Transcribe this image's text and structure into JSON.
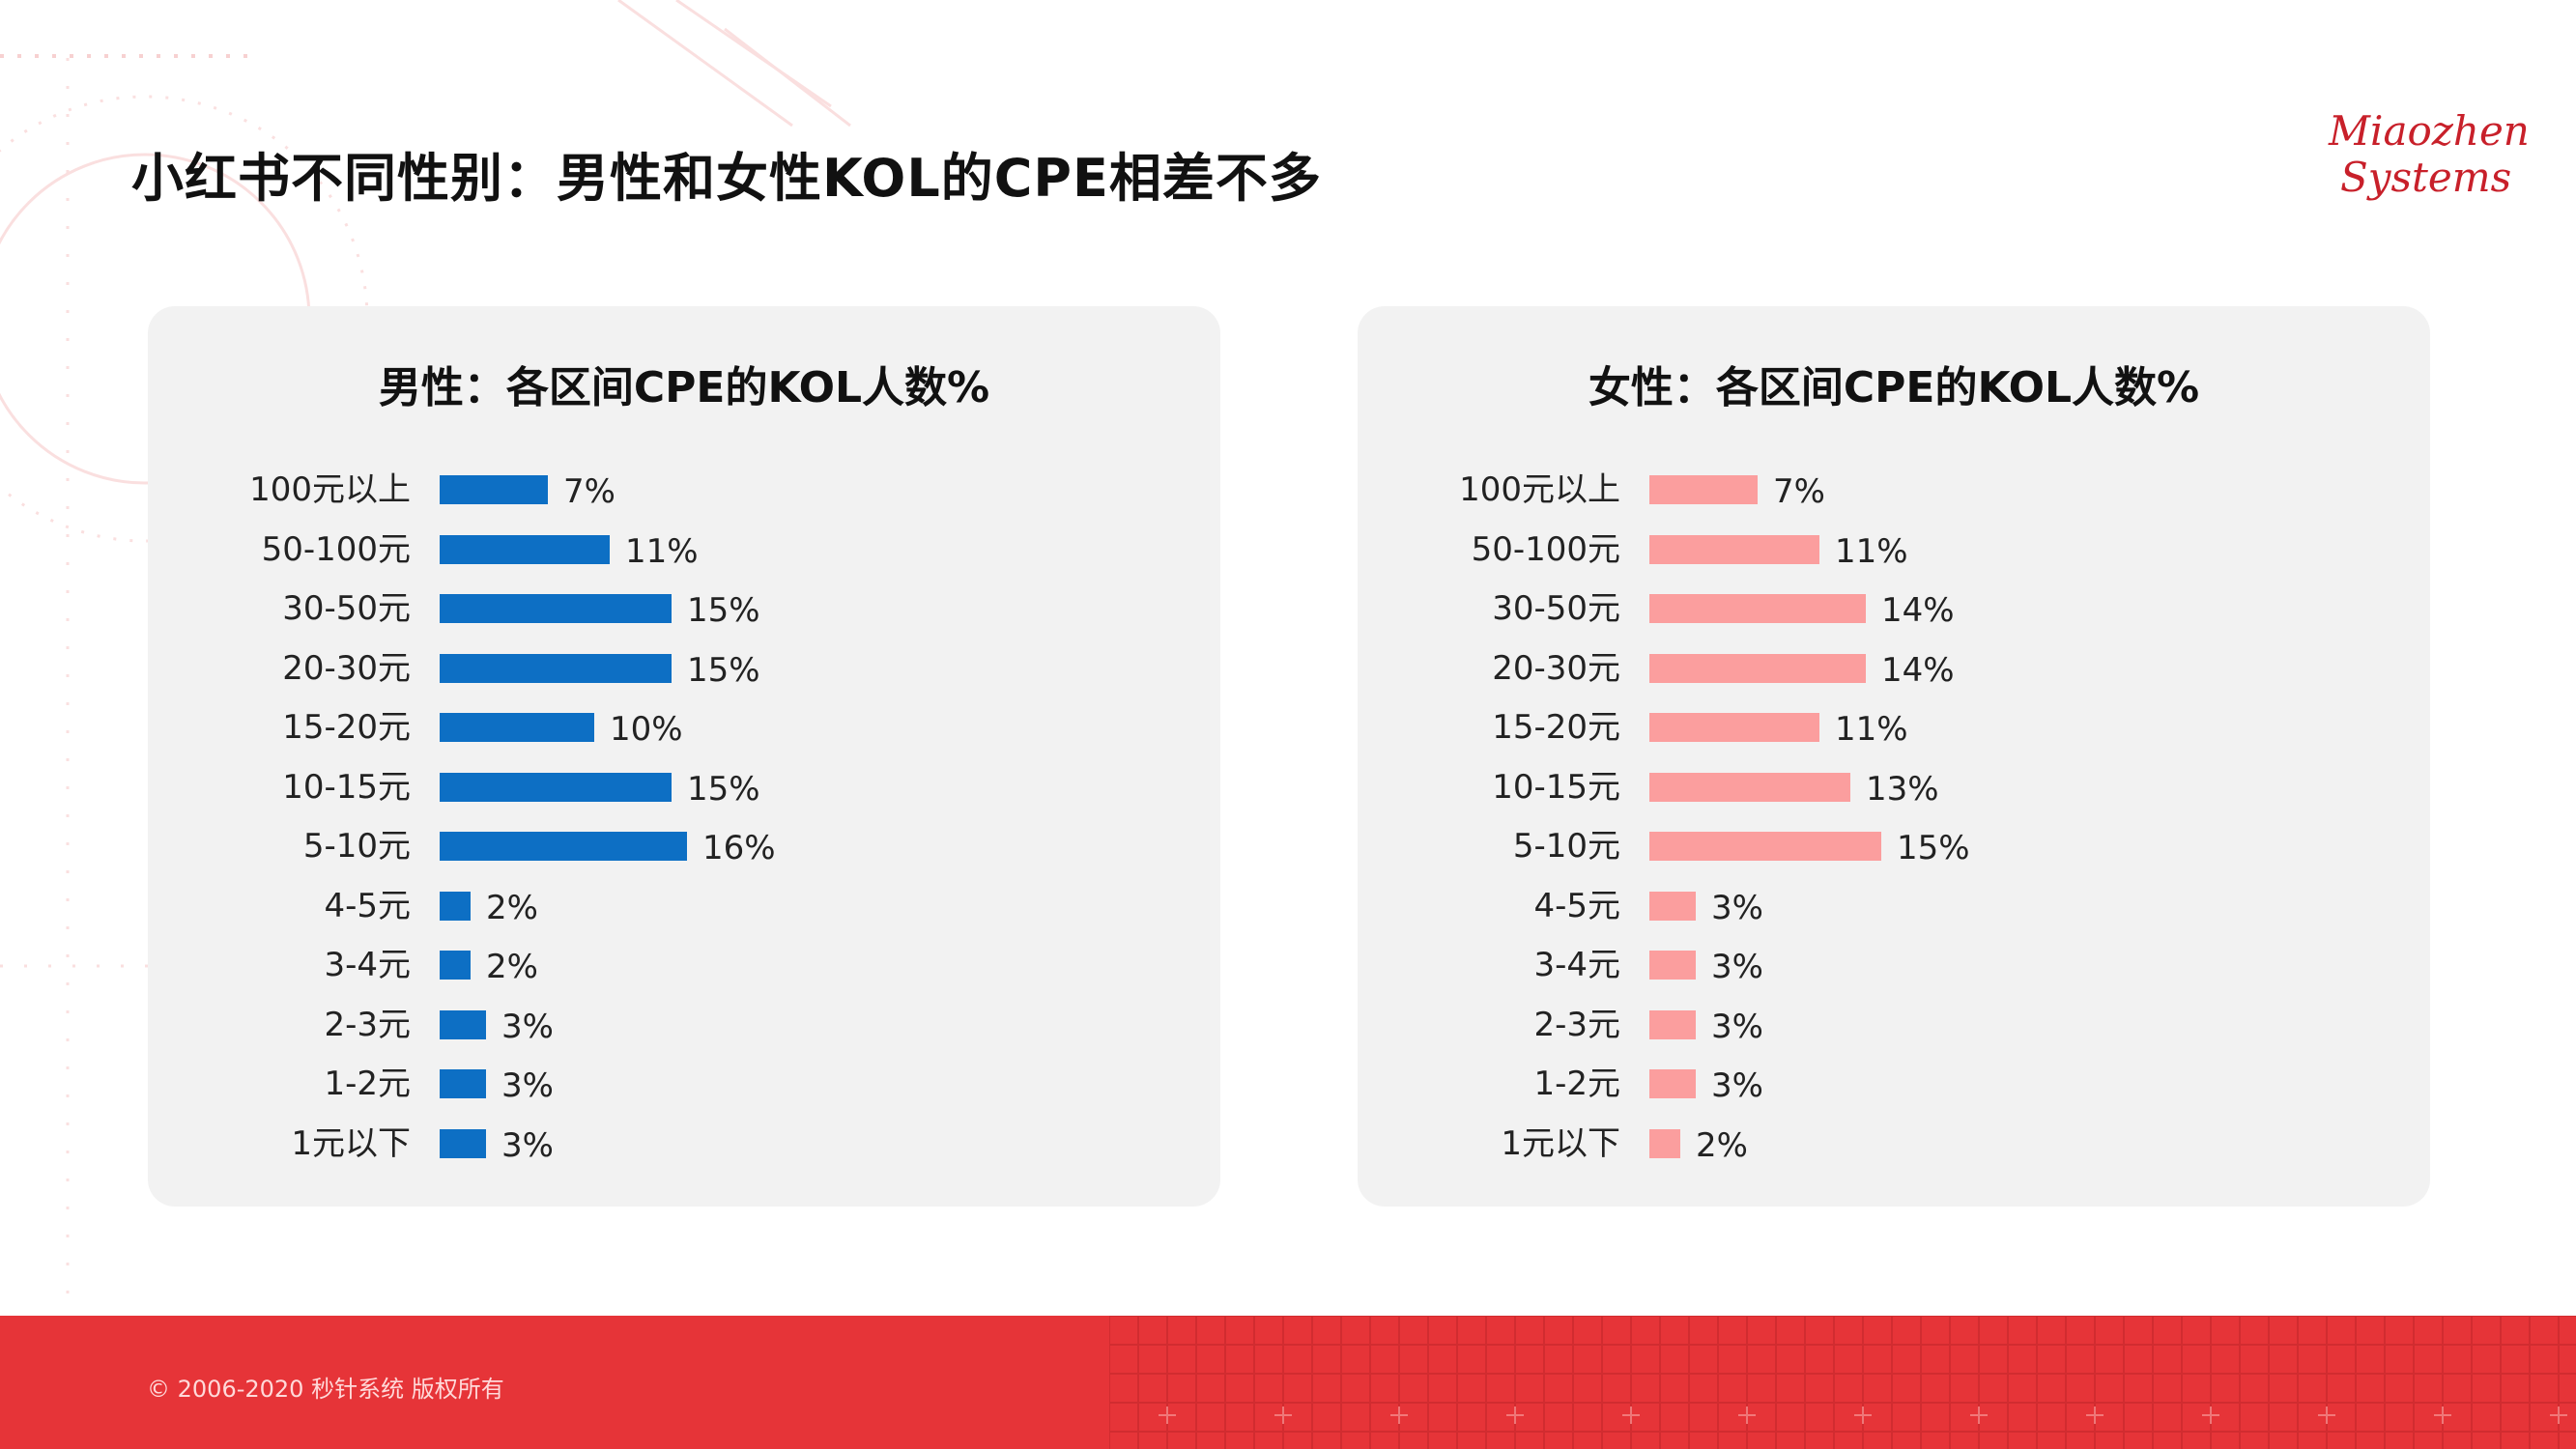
{
  "page": {
    "title": "小红书不同性别：男性和女性KOL的CPE相差不多",
    "logo_line1": "Miaozhen",
    "logo_line2": "Systems",
    "copyright": "© 2006-2020 秒针系统 版权所有"
  },
  "colors": {
    "male_bar": "#0d6fc4",
    "female_bar": "#fb9e9e",
    "footer": "#e63438",
    "panel_bg": "#f2f2f2"
  },
  "chart_data": [
    {
      "type": "bar",
      "orientation": "horizontal",
      "title": "男性：各区间CPE的KOL人数%",
      "categories": [
        "100元以上",
        "50-100元",
        "30-50元",
        "20-30元",
        "15-20元",
        "10-15元",
        "5-10元",
        "4-5元",
        "3-4元",
        "2-3元",
        "1-2元",
        "1元以下"
      ],
      "values": [
        7,
        11,
        15,
        15,
        10,
        15,
        16,
        2,
        2,
        3,
        3,
        3
      ],
      "value_labels": [
        "7%",
        "11%",
        "15%",
        "15%",
        "10%",
        "15%",
        "16%",
        "2%",
        "2%",
        "3%",
        "3%",
        "3%"
      ],
      "unit": "%",
      "grid": false,
      "legend": "none"
    },
    {
      "type": "bar",
      "orientation": "horizontal",
      "title": "女性：各区间CPE的KOL人数%",
      "categories": [
        "100元以上",
        "50-100元",
        "30-50元",
        "20-30元",
        "15-20元",
        "10-15元",
        "5-10元",
        "4-5元",
        "3-4元",
        "2-3元",
        "1-2元",
        "1元以下"
      ],
      "values": [
        7,
        11,
        14,
        14,
        11,
        13,
        15,
        3,
        3,
        3,
        3,
        2
      ],
      "value_labels": [
        "7%",
        "11%",
        "14%",
        "14%",
        "11%",
        "13%",
        "15%",
        "3%",
        "3%",
        "3%",
        "3%",
        "2%"
      ],
      "unit": "%",
      "grid": false,
      "legend": "none"
    }
  ]
}
